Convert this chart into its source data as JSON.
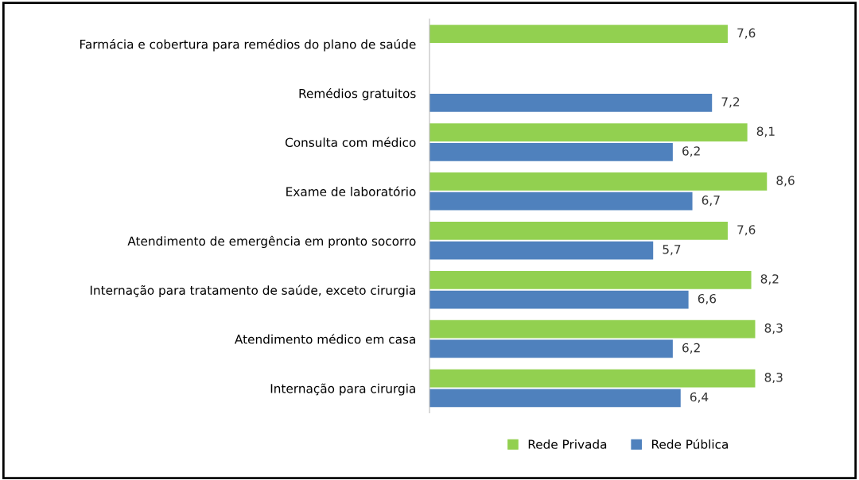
{
  "chart_data": {
    "type": "bar",
    "orientation": "horizontal",
    "categories": [
      "Farmácia e cobertura para remédios do plano de saúde",
      "Remédios gratuitos",
      "Consulta com médico",
      "Exame de laboratório",
      "Atendimento de emergência em pronto socorro",
      "Internação para tratamento de saúde, exceto cirurgia",
      "Atendimento médico em casa",
      "Internação para cirurgia"
    ],
    "series": [
      {
        "name": "Rede Privada",
        "color": "#92d050",
        "values": [
          7.6,
          null,
          8.1,
          8.6,
          7.6,
          8.2,
          8.3,
          8.3
        ],
        "value_labels": [
          "7,6",
          null,
          "8,1",
          "8,6",
          "7,6",
          "8,2",
          "8,3",
          "8,3"
        ]
      },
      {
        "name": "Rede Pública",
        "color": "#4f81bd",
        "values": [
          null,
          7.2,
          6.2,
          6.7,
          5.7,
          6.6,
          6.2,
          6.4
        ],
        "value_labels": [
          null,
          "7,2",
          "6,2",
          "6,7",
          "5,7",
          "6,6",
          "6,2",
          "6,4"
        ]
      }
    ],
    "legend": "bottom",
    "grid": false,
    "tick_labels": "y"
  }
}
